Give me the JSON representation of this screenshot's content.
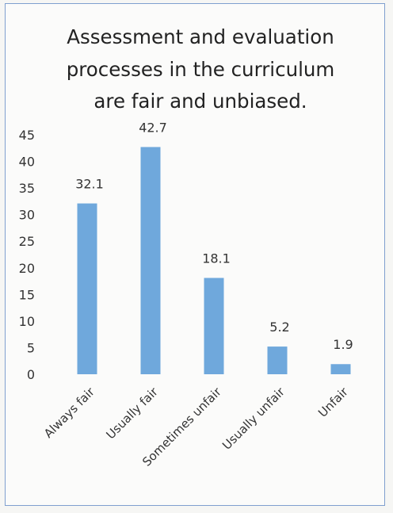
{
  "chart_data": {
    "type": "bar",
    "title_lines": [
      "Assessment and evaluation",
      "processes in the curriculum",
      "are fair and unbiased."
    ],
    "categories": [
      "Always fair",
      "Usually fair",
      "Sometimes unfair",
      "Usually unfair",
      "Unfair"
    ],
    "values": [
      32.1,
      42.7,
      18.1,
      5.2,
      1.9
    ],
    "data_labels": [
      "32.1",
      "42.7",
      "18.1",
      "5.2",
      "1.9"
    ],
    "ylim": [
      0,
      45
    ],
    "yticks": [
      "0",
      "5",
      "10",
      "15",
      "20",
      "25",
      "30",
      "35",
      "40",
      "45"
    ],
    "grid": false,
    "legend": "none",
    "bar_color": "#6fa8dc",
    "xlabel": "",
    "ylabel": ""
  }
}
